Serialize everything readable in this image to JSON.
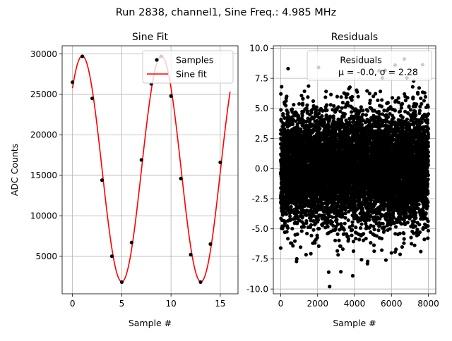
{
  "figure": {
    "suptitle": "Run 2838, channel1, Sine Freq.: 4.985 MHz"
  },
  "chart_data": [
    {
      "type": "line",
      "title": "Sine Fit",
      "xlabel": "Sample #",
      "ylabel": "ADC Counts",
      "xlim": [
        -1.05,
        16.8
      ],
      "ylim": [
        360,
        31000
      ],
      "xticks": [
        0,
        5,
        10,
        15
      ],
      "yticks": [
        5000,
        10000,
        15000,
        20000,
        25000,
        30000
      ],
      "grid": true,
      "legend_position": "top-right",
      "series": [
        {
          "name": "Samples",
          "kind": "scatter",
          "color": "#000000",
          "x": [
            0,
            1,
            2,
            3,
            4,
            5,
            6,
            7,
            8,
            9,
            10,
            11,
            12,
            13,
            14,
            15
          ],
          "y": [
            26500,
            29700,
            24500,
            14400,
            5000,
            1800,
            6700,
            16900,
            26300,
            29700,
            24800,
            14600,
            5200,
            1800,
            6500,
            16600
          ]
        },
        {
          "name": "Sine fit",
          "kind": "line",
          "color": "#ff0000",
          "function": {
            "offset": 15800,
            "amplitude": 13950,
            "period": 8.027,
            "peak_x": 0.99,
            "x_min": 0,
            "x_max": 16,
            "samples": 321
          }
        }
      ]
    },
    {
      "type": "scatter",
      "title": "Residuals",
      "xlabel": "Sample #",
      "ylabel": "",
      "xlim": [
        -400,
        8400
      ],
      "ylim": [
        -10.4,
        10.2
      ],
      "xticks": [
        0,
        2000,
        4000,
        6000,
        8000
      ],
      "yticks": [
        -10.0,
        -7.5,
        -5.0,
        -2.5,
        0.0,
        2.5,
        5.0,
        7.5,
        10.0
      ],
      "grid": true,
      "legend_position": "top-right",
      "legend": {
        "title": "Residuals",
        "label": "μ = -0.0, σ = 2.28"
      },
      "series": [
        {
          "name": "Residuals",
          "color": "#000000",
          "n_points": 8000,
          "mean": 0.0,
          "std": 2.28,
          "x_range": [
            0,
            7999
          ],
          "notable_points": [
            {
              "x": 2650,
              "y": -9.8
            },
            {
              "x": 3900,
              "y": -8.9
            },
            {
              "x": 2600,
              "y": -8.6
            },
            {
              "x": 4700,
              "y": -7.9
            },
            {
              "x": 5700,
              "y": -7.6
            },
            {
              "x": 2050,
              "y": 8.4
            },
            {
              "x": 400,
              "y": 8.3
            },
            {
              "x": 6700,
              "y": 9.1
            },
            {
              "x": 6200,
              "y": 8.6
            },
            {
              "x": 7500,
              "y": 6.7
            },
            {
              "x": 0,
              "y": -6.6
            },
            {
              "x": 50,
              "y": 6.8
            }
          ]
        }
      ]
    }
  ]
}
